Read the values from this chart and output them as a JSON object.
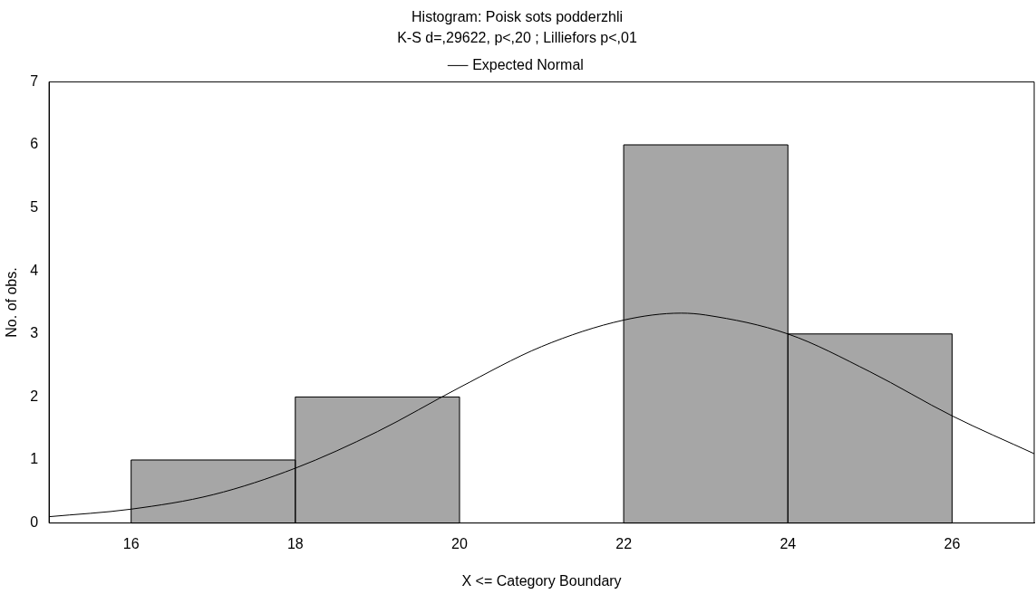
{
  "chart_data": {
    "type": "histogram",
    "title": "Histogram: Poisk sots podderzhli",
    "subtitle": "K-S d=,29622, p<,20 ; Lilliefors p<,01",
    "xlabel": "X <= Category Boundary",
    "ylabel": "No. of obs.",
    "bins": [
      16,
      18,
      20,
      22,
      24,
      26
    ],
    "values": [
      1,
      2,
      0,
      6,
      3
    ],
    "color": "#a6a6a6",
    "series": [
      {
        "type": "line",
        "name": "Expected Normal",
        "color": "#000000",
        "x": [
          15,
          16,
          17,
          18,
          19,
          20,
          21,
          22,
          22.7,
          23,
          24,
          25,
          26,
          27
        ],
        "values": [
          0.1,
          0.22,
          0.45,
          0.87,
          1.45,
          2.15,
          2.8,
          3.22,
          3.33,
          3.3,
          3.0,
          2.4,
          1.7,
          1.1
        ]
      }
    ],
    "xlim": [
      15,
      27
    ],
    "xticks": [
      16,
      18,
      20,
      22,
      24,
      26
    ],
    "ylim": [
      0,
      7
    ],
    "yticks": [
      0,
      1,
      2,
      3,
      4,
      5,
      6,
      7
    ],
    "grid": false,
    "legend": "top",
    "marker": "none",
    "line_style": "solid"
  }
}
